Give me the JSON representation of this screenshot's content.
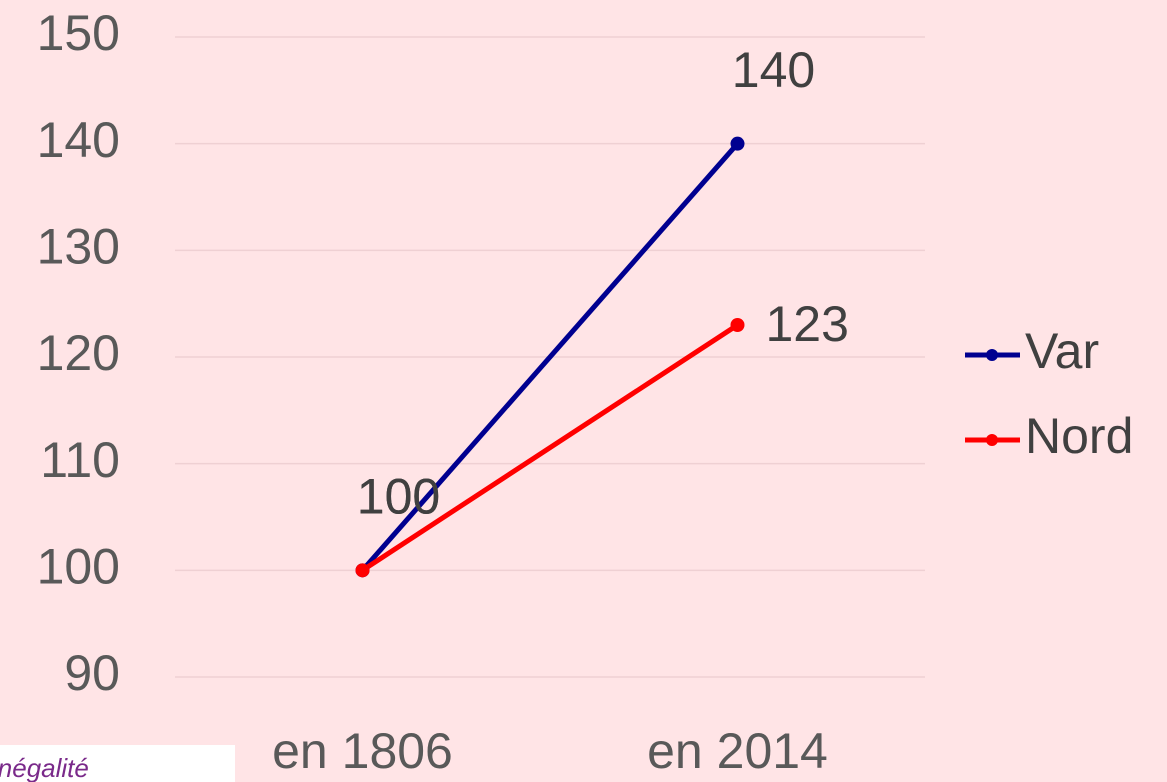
{
  "chart_data": {
    "type": "line",
    "categories": [
      "en 1806",
      "en 2014"
    ],
    "series": [
      {
        "name": "Var",
        "color": "#000090",
        "values": [
          100,
          140
        ]
      },
      {
        "name": "Nord",
        "color": "#ff0000",
        "values": [
          100,
          123
        ]
      }
    ],
    "ylim": [
      90,
      150
    ],
    "yticks": [
      90,
      100,
      110,
      120,
      130,
      140,
      150
    ],
    "grid": true,
    "legend": "right",
    "background": "#ffe4e6",
    "note": "inégalité"
  }
}
